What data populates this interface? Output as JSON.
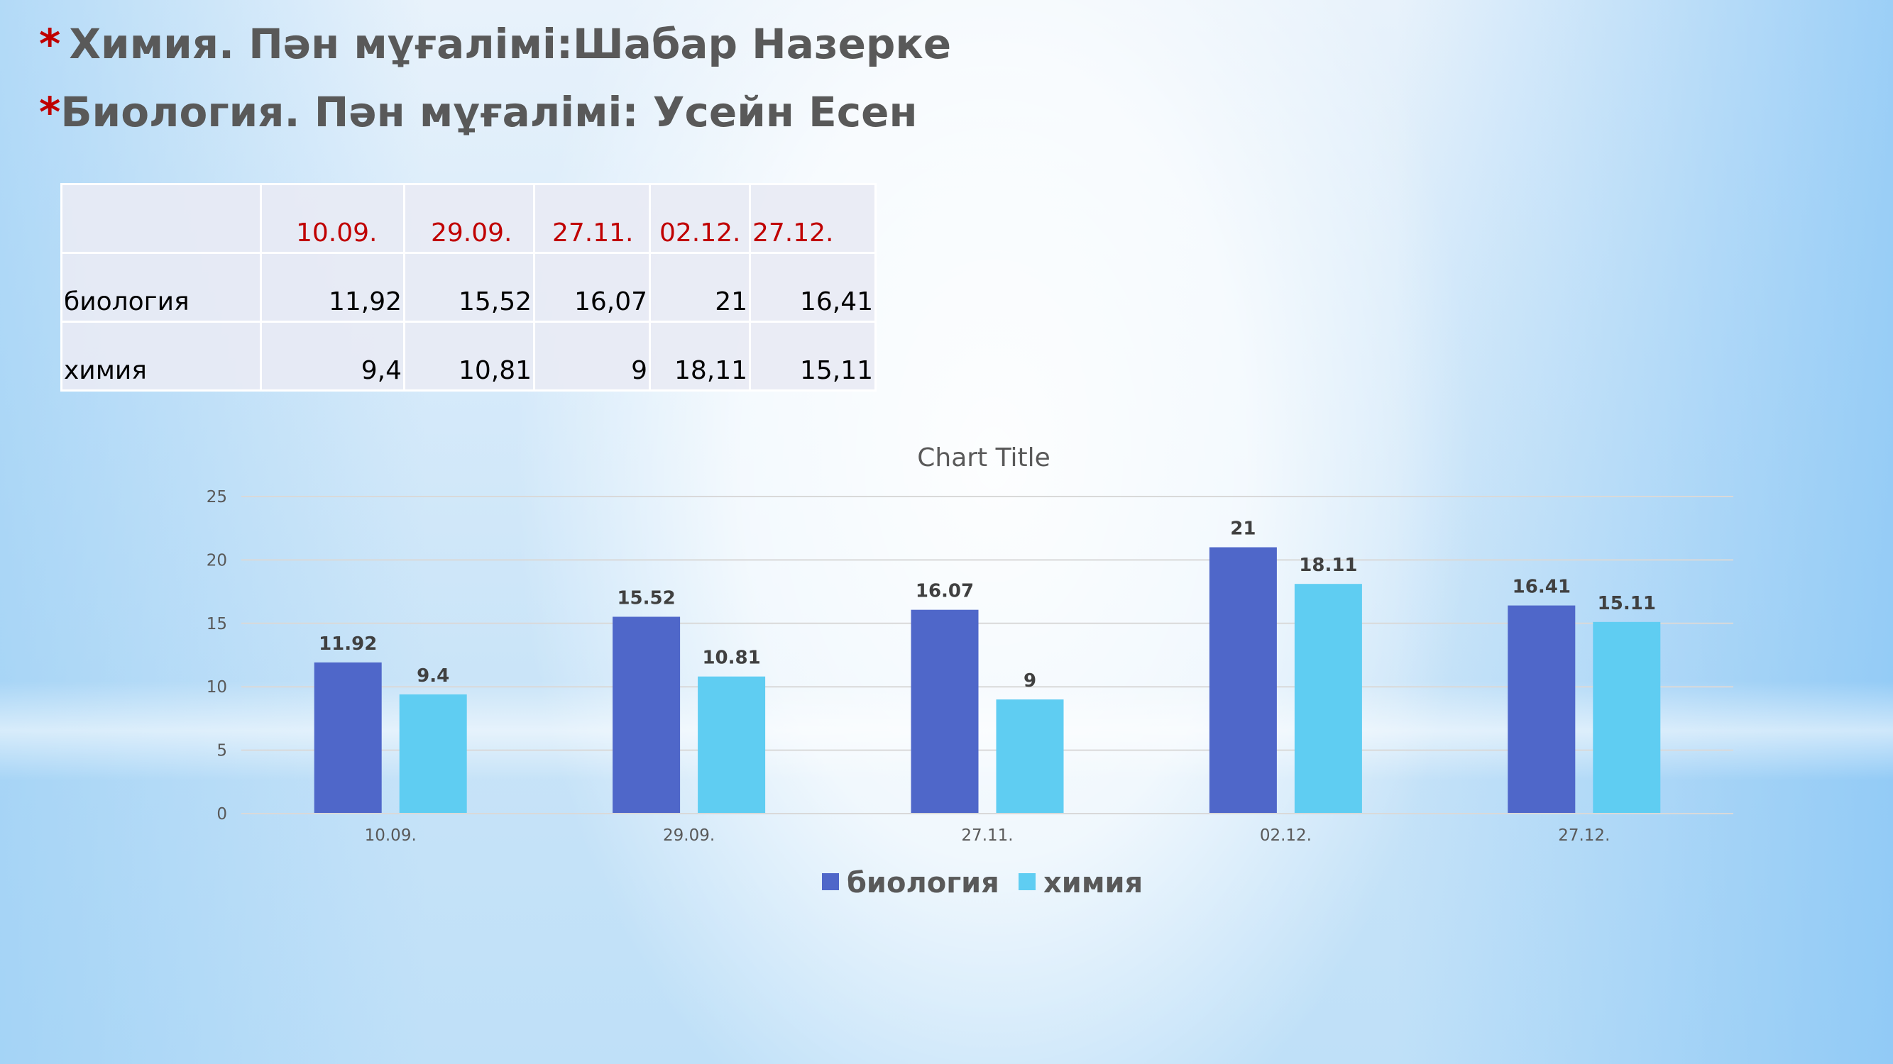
{
  "headings": [
    {
      "star": "*",
      "text": "Химия. Пән мұғалімі:Шабар Назерке"
    },
    {
      "star": "*",
      "text": "Биология. Пән мұғалімі: Усейн Есен"
    }
  ],
  "table": {
    "header": [
      "",
      "10.09.",
      "29.09.",
      "27.11.",
      "02.12.",
      "27.12."
    ],
    "rows": [
      {
        "label": "биология",
        "values": [
          "11,92",
          "15,52",
          "16,07",
          "21",
          "16,41"
        ]
      },
      {
        "label": "химия",
        "values": [
          "9,4",
          "10,81",
          "9",
          "18,11",
          "15,11"
        ]
      }
    ]
  },
  "chart_data": {
    "type": "bar",
    "title": "Chart Title",
    "categories": [
      "10.09.",
      "29.09.",
      "27.11.",
      "02.12.",
      "27.12."
    ],
    "series": [
      {
        "name": "биология",
        "color": "#4f67c9",
        "values": [
          11.92,
          15.52,
          16.07,
          21,
          16.41
        ],
        "labels": [
          "11.92",
          "15.52",
          "16.07",
          "21",
          "16.41"
        ]
      },
      {
        "name": "химия",
        "color": "#5fcdf2",
        "values": [
          9.4,
          10.81,
          9,
          18.11,
          15.11
        ],
        "labels": [
          "9.4",
          "10.81",
          "9",
          "18.11",
          "15.11"
        ]
      }
    ],
    "ylim": [
      0,
      25
    ],
    "yticks": [
      "0",
      "5",
      "10",
      "15",
      "20",
      "25"
    ],
    "grid": true,
    "legend": "bottom"
  }
}
